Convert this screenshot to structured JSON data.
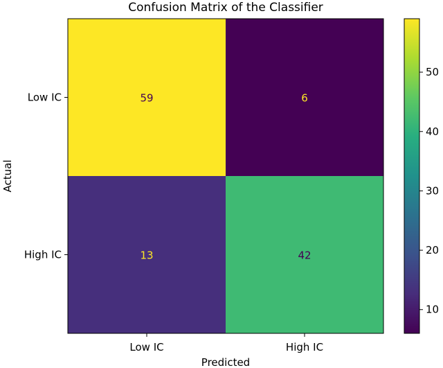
{
  "chart_data": {
    "type": "heatmap",
    "title": "Confusion Matrix of the Classifier",
    "xlabel": "Predicted",
    "ylabel": "Actual",
    "x_categories": [
      "Low IC",
      "High IC"
    ],
    "y_categories": [
      "Low IC",
      "High IC"
    ],
    "values": [
      [
        59,
        6
      ],
      [
        13,
        42
      ]
    ],
    "colormap": "viridis",
    "colorbar": {
      "range": [
        6,
        59
      ],
      "ticks": [
        10,
        20,
        30,
        40,
        50
      ],
      "tick_labels": [
        "10",
        "20",
        "30",
        "40",
        "50"
      ]
    }
  }
}
